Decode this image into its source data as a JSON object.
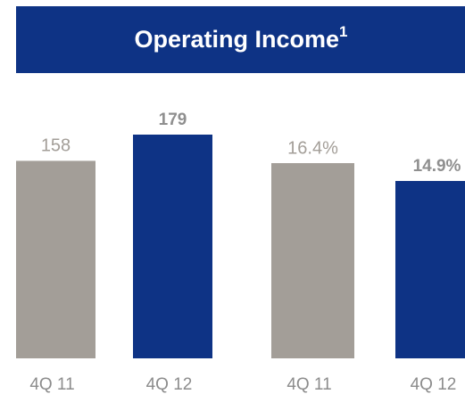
{
  "title": {
    "text": "Operating Income",
    "superscript": "1"
  },
  "chart_data": [
    {
      "type": "bar",
      "categories": [
        "4Q 11",
        "4Q 12"
      ],
      "values": [
        158,
        179
      ],
      "colors": [
        "#a39e98",
        "#0e3385"
      ]
    },
    {
      "type": "bar",
      "categories": [
        "4Q 11",
        "4Q 12"
      ],
      "values": [
        16.4,
        14.9
      ],
      "value_labels": [
        "16.4%",
        "14.9%"
      ],
      "colors": [
        "#a39e98",
        "#0e3385"
      ]
    }
  ]
}
